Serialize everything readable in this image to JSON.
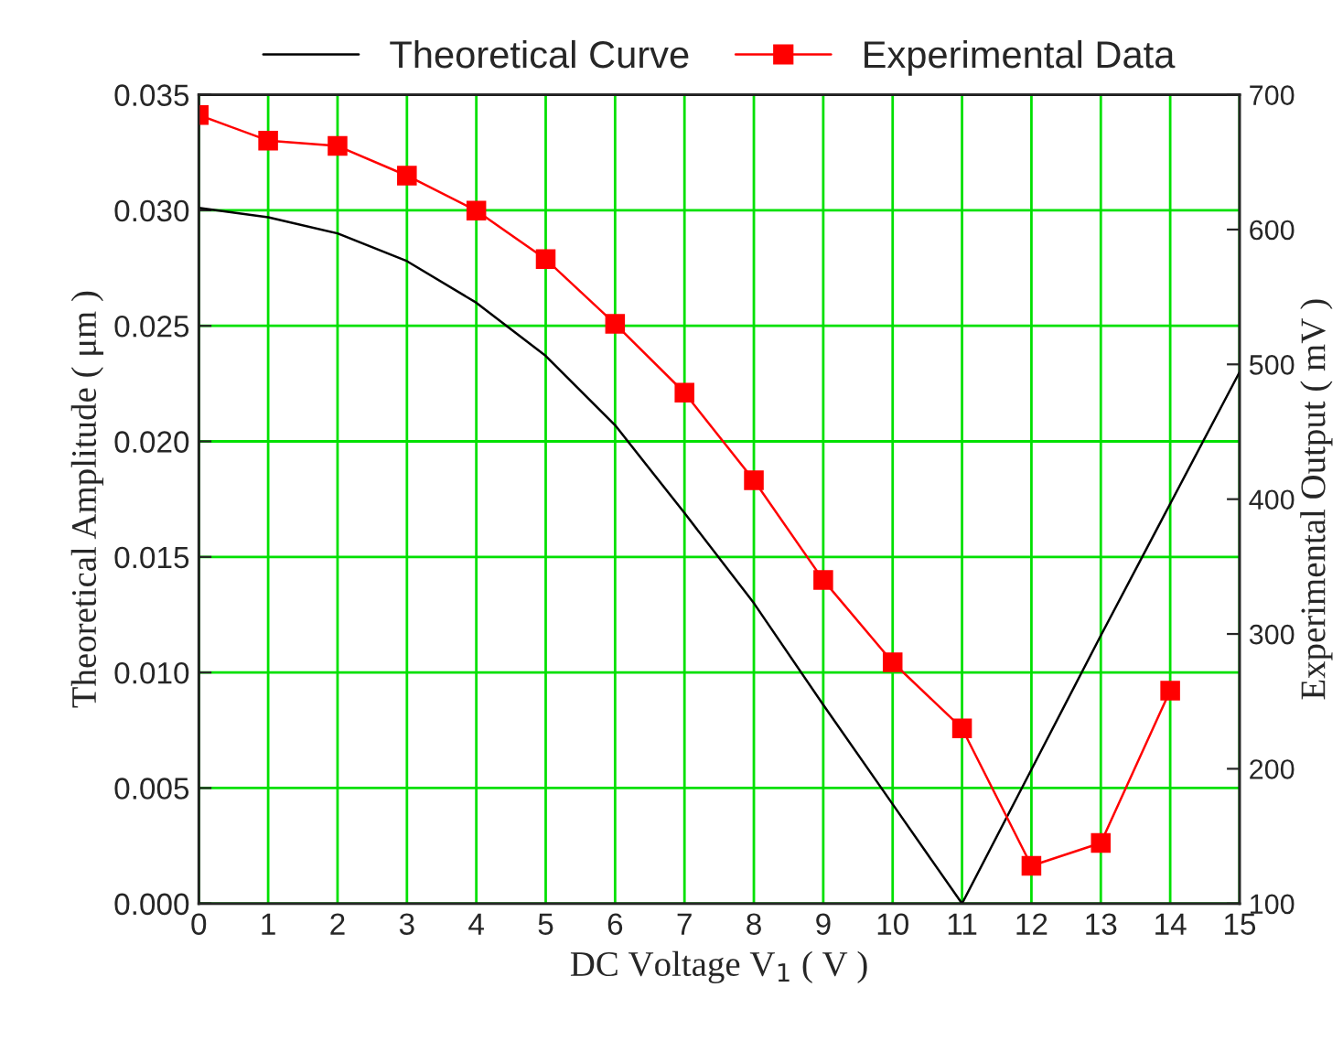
{
  "chart_data": {
    "type": "line",
    "xlabel": "DC Voltage V$_{1}$ ( V )",
    "ylabel": "Theoretical Amplitude ( μm )",
    "y2label": "Experimental Output ( mV )",
    "xlim": [
      0,
      15
    ],
    "xticks": [
      0,
      1,
      2,
      3,
      4,
      5,
      6,
      7,
      8,
      9,
      10,
      11,
      12,
      13,
      14,
      15
    ],
    "ylim": [
      0,
      0.035
    ],
    "yticks": [
      {
        "value": 0,
        "label": "0.000"
      },
      {
        "value": 0.005,
        "label": "0.005"
      },
      {
        "value": 0.01,
        "label": "0.010"
      },
      {
        "value": 0.015,
        "label": "0.015"
      },
      {
        "value": 0.02,
        "label": "0.020"
      },
      {
        "value": 0.025,
        "label": "0.025"
      },
      {
        "value": 0.03,
        "label": "0.030"
      },
      {
        "value": 0.035,
        "label": "0.035"
      }
    ],
    "y2lim": [
      100,
      700
    ],
    "y2ticks": [
      100,
      200,
      300,
      400,
      500,
      600,
      700
    ],
    "grid": true,
    "legend": "top",
    "series": [
      {
        "name": "Theoretical Curve",
        "color": "#000000",
        "marker": "none",
        "x": [
          0,
          1,
          2,
          3,
          4,
          5,
          6,
          7,
          8,
          9,
          10,
          11,
          12,
          13,
          14,
          15
        ],
        "values": [
          0.0301,
          0.0297,
          0.029,
          0.0278,
          0.026,
          0.0237,
          0.0207,
          0.0169,
          0.013,
          0.0086,
          0.0043,
          0,
          0.0058,
          0.0116,
          0.0173,
          0.023
        ]
      },
      {
        "name": "Experimental Data",
        "color": "#ff0000",
        "marker": "square",
        "axis": "y2",
        "x": [
          0,
          1,
          2,
          3,
          4,
          5,
          6,
          7,
          8,
          9,
          10,
          11,
          12,
          13,
          14
        ],
        "values": [
          685,
          666,
          662,
          640,
          614,
          578,
          530,
          479,
          414,
          340,
          279,
          230,
          128,
          145,
          258
        ]
      }
    ]
  }
}
